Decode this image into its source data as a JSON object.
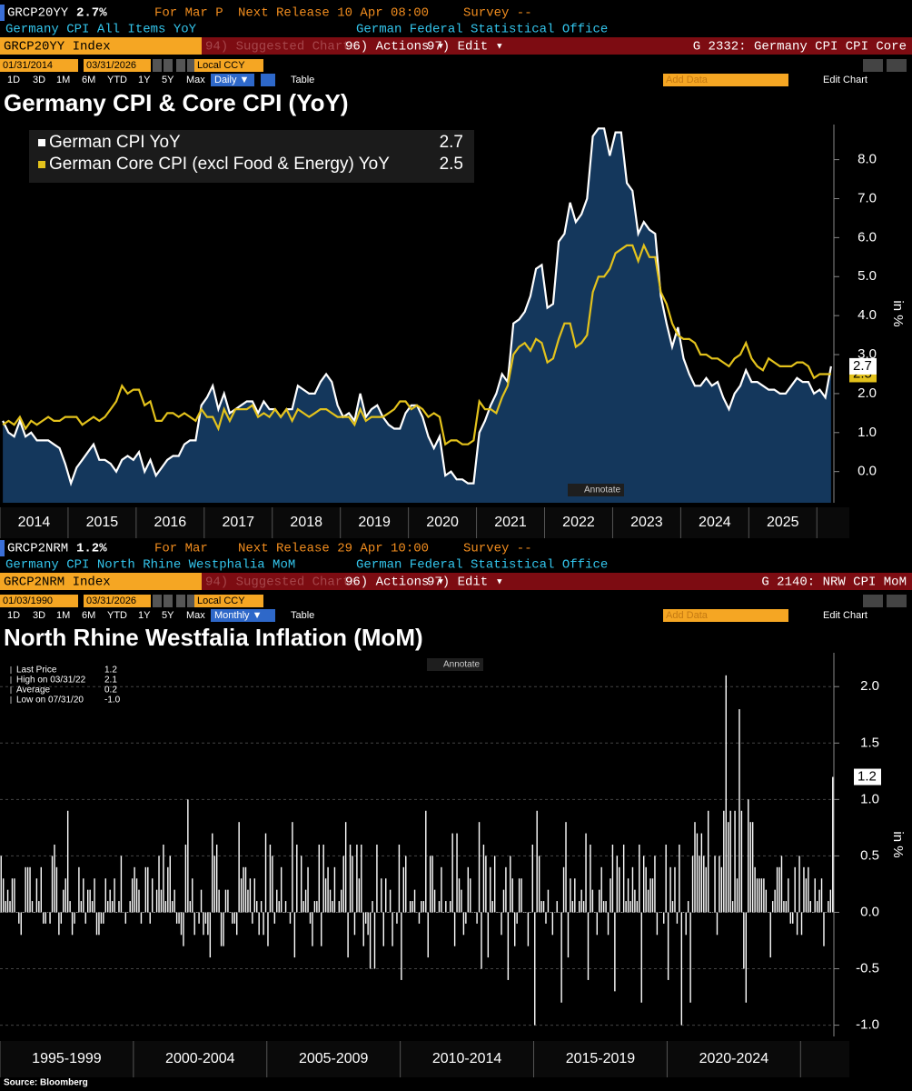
{
  "panels": [
    {
      "ticker": "GRCP20YY",
      "last": "2.7%",
      "period": "For Mar P",
      "release": "Next Release 10 Apr 08:00",
      "survey": "Survey --",
      "description": "Germany CPI All Items YoY",
      "source": "German Federal Statistical Office",
      "security": "GRCP20YY Index",
      "suggested": "94) Suggested Charts",
      "actions": "96) Actions ▾",
      "edit": "97) Edit ▾",
      "chart_ref": "G 2332: Germany CPI CPI Core",
      "start_date": "01/31/2014",
      "end_date": "03/31/2026",
      "currency": "Local CCY",
      "ranges": [
        "1D",
        "3D",
        "1M",
        "6M",
        "YTD",
        "1Y",
        "5Y",
        "Max"
      ],
      "frequency": "Daily ▼",
      "table": "Table",
      "add_data": "Add Data",
      "edit_chart": "Edit Chart",
      "annotate": "Annotate"
    },
    {
      "ticker": "GRCP2NRM",
      "last": "1.2%",
      "period": "For Mar",
      "release": "Next Release 29 Apr 10:00",
      "survey": "Survey --",
      "description": "Germany CPI North Rhine Westphalia MoM",
      "source": "German Federal Statistical Office",
      "security": "GRCP2NRM Index",
      "suggested": "94) Suggested Charts",
      "actions": "96) Actions ▾",
      "edit": "97) Edit ▾",
      "chart_ref": "G 2140: NRW CPI MoM",
      "start_date": "01/03/1990",
      "end_date": "03/31/2026",
      "currency": "Local CCY",
      "ranges": [
        "1D",
        "3D",
        "1M",
        "6M",
        "YTD",
        "1Y",
        "5Y",
        "Max"
      ],
      "frequency": "Monthly ▼",
      "table": "Table",
      "add_data": "Add Data",
      "edit_chart": "Edit Chart",
      "annotate": "Annotate"
    }
  ],
  "source": "Source: Bloomberg",
  "chart_data": [
    {
      "type": "line",
      "title": "Germany CPI & Core CPI (YoY)",
      "y_label": "in %",
      "categories": [
        "2014",
        "2015",
        "2016",
        "2017",
        "2018",
        "2019",
        "2020",
        "2021",
        "2022",
        "2023",
        "2024",
        "2025",
        null
      ],
      "series": [
        {
          "name": "German CPI YoY",
          "color": "#ffffff",
          "area_color": "#14375c",
          "values": [
            [
              1.3,
              1.0,
              0.9,
              1.3,
              0.9,
              1.0,
              0.8,
              0.8,
              0.8,
              0.7,
              0.6,
              0.2
            ],
            [
              -0.3,
              0.1,
              0.3,
              0.5,
              0.7,
              0.3,
              0.3,
              0.2,
              0.0,
              0.3,
              0.4,
              0.3
            ],
            [
              0.5,
              0.0,
              0.3,
              -0.1,
              0.1,
              0.3,
              0.4,
              0.4,
              0.7,
              0.8,
              0.8,
              1.7
            ],
            [
              1.9,
              2.2,
              1.6,
              2.0,
              1.5,
              1.6,
              1.7,
              1.8,
              1.8,
              1.5,
              1.8,
              1.6
            ],
            [
              1.6,
              1.4,
              1.6,
              1.6,
              2.2,
              2.1,
              2.0,
              2.0,
              2.3,
              2.5,
              2.3,
              1.7
            ],
            [
              1.4,
              1.5,
              1.3,
              2.0,
              1.4,
              1.6,
              1.7,
              1.4,
              1.2,
              1.1,
              1.1,
              1.5
            ],
            [
              1.7,
              1.7,
              1.4,
              0.9,
              0.6,
              0.9,
              -0.1,
              0.0,
              -0.2,
              -0.2,
              -0.3,
              -0.3
            ],
            [
              1.0,
              1.3,
              1.7,
              2.0,
              2.5,
              2.3,
              3.8,
              3.9,
              4.1,
              4.5,
              5.2,
              5.3
            ],
            [
              4.2,
              4.3,
              5.9,
              6.1,
              6.9,
              6.4,
              6.6,
              7.0,
              8.6,
              8.8,
              8.8,
              8.1
            ],
            [
              8.7,
              8.7,
              7.4,
              7.2,
              6.1,
              6.4,
              6.2,
              6.1,
              4.5,
              3.8,
              3.2,
              3.7
            ],
            [
              2.9,
              2.5,
              2.2,
              2.2,
              2.4,
              2.2,
              2.3,
              1.9,
              1.6,
              2.0,
              2.2,
              2.6
            ],
            [
              2.3,
              2.3,
              2.2,
              2.1,
              2.1,
              2.0,
              2.0,
              2.2,
              2.4,
              2.3,
              2.3,
              2.0
            ],
            [
              2.1,
              1.9,
              2.7
            ]
          ]
        },
        {
          "name": "German Core CPI (excl Food & Energy) YoY",
          "color": "#e3c21c",
          "values": [
            [
              1.2,
              1.3,
              1.2,
              1.4,
              1.1,
              1.3,
              1.2,
              1.3,
              1.4,
              1.3,
              1.3,
              1.4
            ],
            [
              1.4,
              1.4,
              1.2,
              1.3,
              1.4,
              1.3,
              1.4,
              1.6,
              1.8,
              2.2,
              2.0,
              2.1
            ],
            [
              2.1,
              1.7,
              1.8,
              1.3,
              1.3,
              1.5,
              1.5,
              1.4,
              1.5,
              1.4,
              1.3,
              1.6
            ],
            [
              1.4,
              1.4,
              1.1,
              1.6,
              1.3,
              1.6,
              1.6,
              1.6,
              1.7,
              1.4,
              1.5,
              1.4
            ],
            [
              1.6,
              1.4,
              1.6,
              1.3,
              1.6,
              1.5,
              1.4,
              1.5,
              1.6,
              1.6,
              1.5,
              1.4
            ],
            [
              1.4,
              1.4,
              1.2,
              1.6,
              1.3,
              1.4,
              1.4,
              1.4,
              1.5,
              1.6,
              1.8,
              1.8
            ],
            [
              1.6,
              1.7,
              1.6,
              1.4,
              1.5,
              1.4,
              0.7,
              0.8,
              0.8,
              0.7,
              0.7,
              0.8
            ],
            [
              1.8,
              1.6,
              1.6,
              1.5,
              1.9,
              2.2,
              3.0,
              3.2,
              3.3,
              3.1,
              3.4,
              3.3
            ],
            [
              2.8,
              2.9,
              3.4,
              3.8,
              3.8,
              3.2,
              3.3,
              3.5,
              4.6,
              5.0,
              5.0,
              5.2
            ],
            [
              5.6,
              5.7,
              5.8,
              5.8,
              5.4,
              5.8,
              5.5,
              5.5,
              4.6,
              4.3,
              3.8,
              3.5
            ],
            [
              3.4,
              3.4,
              3.3,
              3.0,
              3.0,
              2.9,
              2.9,
              2.8,
              2.7,
              2.9,
              3.0,
              3.3
            ],
            [
              2.9,
              2.7,
              2.6,
              2.9,
              2.8,
              2.7,
              2.7,
              2.7,
              2.8,
              2.8,
              2.7,
              2.4
            ],
            [
              2.5,
              2.5,
              2.5
            ]
          ]
        }
      ],
      "ylim": [
        -0.8,
        8.9
      ],
      "yticks": [
        {
          "value": 0,
          "label": "0.0"
        },
        {
          "value": 1,
          "label": "1.0"
        },
        {
          "value": 2,
          "label": "2.0"
        },
        {
          "value": 3,
          "label": "3.0"
        },
        {
          "value": 4,
          "label": "4.0"
        },
        {
          "value": 5,
          "label": "5.0"
        },
        {
          "value": 6,
          "label": "6.0"
        },
        {
          "value": 7,
          "label": "7.0"
        },
        {
          "value": 8,
          "label": "8.0"
        }
      ],
      "grid": false,
      "legend": "top-left"
    },
    {
      "type": "bar",
      "title": "North Rhine Westfalia Inflation (MoM)",
      "y_label": "in %",
      "color": "#ffffff",
      "categories": [
        "1995-1999",
        "2000-2004",
        "2005-2009",
        "2010-2014",
        "2015-2019",
        "2020-2024",
        null
      ],
      "values": [
        [
          0.5,
          0.3,
          0.1,
          0.2,
          0.1,
          0.3,
          0.3,
          0.0,
          -0.1,
          -0.2,
          0.0,
          0.4,
          0.4,
          0.4,
          0.1,
          0.0,
          0.3,
          0.1,
          0.4,
          -0.1,
          -0.1,
          0.0,
          -0.1,
          0.5,
          0.6,
          0.4,
          -0.2,
          -0.1,
          0.2,
          0.3,
          0.9,
          0.1,
          -0.2,
          -0.1,
          0.0,
          0.4,
          0.1,
          0.3,
          -0.1,
          0.2,
          0.2,
          0.1,
          0.3,
          -0.2,
          -0.2,
          -0.1,
          -0.1,
          0.3,
          0.1,
          0.2,
          0.1,
          0.3,
          0.0,
          0.1,
          0.5,
          0.0,
          -0.1,
          0.0,
          0.1,
          0.3
        ],
        [
          0.4,
          0.3,
          0.2,
          -0.1,
          0.0,
          0.4,
          0.4,
          -0.1,
          0.3,
          0.0,
          0.2,
          0.5,
          0.2,
          0.6,
          0.1,
          0.4,
          0.5,
          0.1,
          0.2,
          -0.1,
          -0.1,
          -0.2,
          -0.3,
          0.6,
          1.0,
          0.1,
          0.3,
          -0.2,
          0.0,
          -0.1,
          0.2,
          -0.2,
          -0.1,
          -0.2,
          -0.4,
          0.7,
          0.5,
          0.6,
          0.2,
          -0.3,
          -0.3,
          0.2,
          0.2,
          0.0,
          -0.1,
          -0.1,
          -0.2,
          0.8,
          0.3,
          0.4,
          0.4,
          0.2,
          0.3,
          -0.1,
          0.3,
          0.1,
          -0.2,
          0.1,
          -0.2,
          0.7
        ],
        [
          -0.3,
          0.6,
          0.5,
          -0.1,
          0.2,
          0.1,
          0.4,
          0.0,
          0.1,
          0.0,
          -0.1,
          0.8,
          -0.4,
          0.6,
          0.0,
          0.5,
          0.1,
          0.2,
          0.4,
          -0.1,
          -0.3,
          0.1,
          0.1,
          0.6,
          -0.3,
          0.6,
          0.3,
          0.4,
          0.2,
          0.1,
          0.4,
          0.0,
          0.1,
          0.2,
          0.5,
          0.8,
          -0.4,
          0.6,
          0.5,
          -0.2,
          0.6,
          0.3,
          0.6,
          -0.3,
          -0.1,
          -0.2,
          -0.5,
          0.1,
          -0.5,
          0.6,
          0.0,
          0.3,
          -0.3,
          0.3,
          0.0,
          0.2,
          -0.3,
          0.0,
          -0.1,
          0.6
        ],
        [
          -0.6,
          0.4,
          0.5,
          0.0,
          0.1,
          0.1,
          0.2,
          0.0,
          -0.1,
          0.1,
          0.1,
          0.9,
          -0.4,
          0.5,
          0.5,
          0.2,
          0.0,
          0.1,
          0.4,
          0.0,
          0.1,
          0.0,
          0.1,
          0.7,
          -0.3,
          0.7,
          0.3,
          0.2,
          -0.2,
          -0.1,
          0.4,
          0.3,
          0.0,
          0.0,
          -0.1,
          0.8,
          -0.5,
          0.6,
          0.5,
          -0.4,
          0.4,
          0.1,
          0.5,
          0.0,
          0.0,
          -0.2,
          0.2,
          0.4,
          -0.6,
          0.5,
          0.3,
          -0.3,
          -0.1,
          0.3,
          0.3,
          0.0,
          0.0,
          -0.3,
          0.0,
          0.6
        ],
        [
          -1.0,
          0.9,
          0.5,
          0.1,
          0.1,
          -0.1,
          0.2,
          0.0,
          -0.2,
          0.0,
          0.1,
          0.0,
          -0.8,
          0.4,
          0.8,
          -0.4,
          0.3,
          0.1,
          0.3,
          0.0,
          0.1,
          0.2,
          0.1,
          0.7,
          -0.6,
          0.6,
          0.2,
          0.0,
          -0.2,
          0.2,
          0.4,
          0.1,
          0.1,
          -0.2,
          0.3,
          0.6,
          -0.7,
          0.5,
          0.4,
          0.0,
          0.6,
          0.1,
          0.3,
          0.1,
          0.4,
          0.2,
          0.1,
          0.6,
          -0.8,
          0.5,
          0.4,
          0.2,
          0.3,
          0.3,
          0.5,
          -0.2,
          0.0,
          0.0,
          -0.1,
          0.6
        ],
        [
          -0.6,
          0.4,
          0.1,
          0.4,
          -0.1,
          0.6,
          -1.0,
          0.0,
          -0.2,
          0.1,
          -0.8,
          0.5,
          0.8,
          0.7,
          0.5,
          0.7,
          0.5,
          0.4,
          0.9,
          0.0,
          0.0,
          0.5,
          -0.2,
          0.5,
          0.4,
          0.9,
          2.1,
          0.8,
          0.9,
          0.1,
          0.9,
          0.3,
          1.8,
          0.9,
          -0.5,
          -0.8,
          1.0,
          0.8,
          0.8,
          0.4,
          0.3,
          0.3,
          0.3,
          0.3,
          0.2,
          0.0,
          -0.4,
          0.1,
          0.2,
          0.4,
          0.4,
          0.5,
          0.1,
          0.1,
          0.3,
          -0.1,
          -0.1,
          0.4,
          -0.2,
          0.5
        ],
        [
          -0.2,
          0.4,
          0.3,
          0.4,
          0.1,
          0.0,
          0.3,
          0.1,
          0.2,
          0.3,
          -0.3,
          0.0,
          0.1,
          0.2,
          1.2
        ]
      ],
      "ylim": [
        -1.1,
        2.3
      ],
      "yticks": [
        {
          "value": -1,
          "label": "-1.0"
        },
        -0.5,
        {
          "value": 0,
          "label": "0.0"
        },
        0.5,
        {
          "value": 1,
          "label": "1.0"
        },
        1.5,
        {
          "value": 2,
          "label": "2.0"
        }
      ],
      "grid": true,
      "stats": [
        {
          "label": "Last Price",
          "value": "1.2"
        },
        {
          "label": "High on 03/31/22",
          "value": "2.1"
        },
        {
          "label": "Average",
          "value": "0.2"
        },
        {
          "label": "Low on 07/31/20",
          "value": "-1.0"
        }
      ]
    }
  ]
}
